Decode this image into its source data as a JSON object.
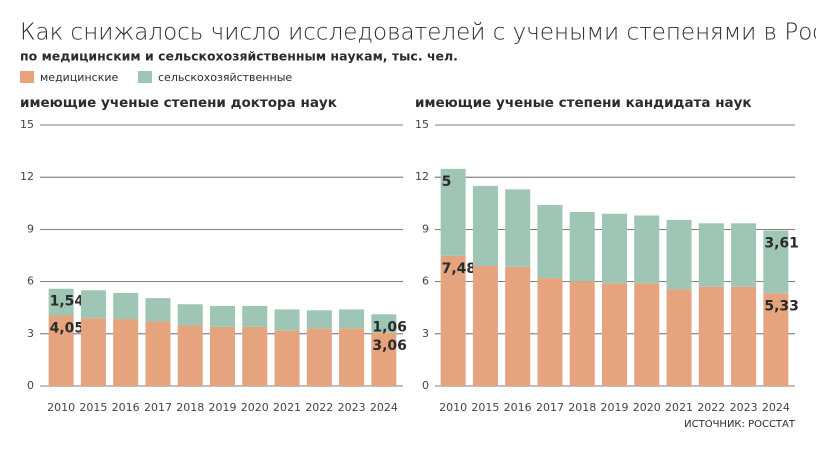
{
  "title": "Как снижалось число исследователей с учеными степенями в России",
  "subtitle": "по медицинским и сельскохозяйственным наукам, тыс. чел.",
  "source": "ИСТОЧНИК: РОССТАТ",
  "chart_data": [
    {
      "type": "stacked-bar",
      "title": "имеющие ученые степени доктора наук",
      "categories": [
        "2010",
        "2015",
        "2016",
        "2017",
        "2018",
        "2019",
        "2020",
        "2021",
        "2022",
        "2023",
        "2024"
      ],
      "series": [
        {
          "name": "медицинские",
          "color": "#e5a47e",
          "values": [
            4.05,
            3.9,
            3.85,
            3.7,
            3.5,
            3.4,
            3.4,
            3.2,
            3.3,
            3.3,
            3.06
          ],
          "value_labels": [
            "4,05",
            null,
            null,
            null,
            null,
            null,
            null,
            null,
            null,
            null,
            "3,06"
          ]
        },
        {
          "name": "сельскохозяйственные",
          "color": "#9fc5b5",
          "values": [
            1.54,
            1.6,
            1.5,
            1.35,
            1.2,
            1.2,
            1.2,
            1.2,
            1.05,
            1.1,
            1.06
          ],
          "value_labels": [
            "1,54",
            null,
            null,
            null,
            null,
            null,
            null,
            null,
            null,
            null,
            "1,06"
          ]
        }
      ],
      "ylim": [
        0,
        15
      ],
      "yticks": [
        0,
        3,
        6,
        9,
        12,
        15
      ],
      "grid": true
    },
    {
      "type": "stacked-bar",
      "title": "имеющие ученые степени кандидата наук",
      "categories": [
        "2010",
        "2015",
        "2016",
        "2017",
        "2018",
        "2019",
        "2020",
        "2021",
        "2022",
        "2023",
        "2024"
      ],
      "series": [
        {
          "name": "медицинские",
          "color": "#e5a47e",
          "values": [
            7.48,
            6.9,
            6.85,
            6.2,
            6.0,
            5.9,
            5.9,
            5.55,
            5.7,
            5.7,
            5.33
          ],
          "value_labels": [
            "7,48",
            null,
            null,
            null,
            null,
            null,
            null,
            null,
            null,
            null,
            "5,33"
          ]
        },
        {
          "name": "сельскохозяйственные",
          "color": "#9fc5b5",
          "values": [
            5,
            4.6,
            4.45,
            4.2,
            4.0,
            4.0,
            3.9,
            4.0,
            3.65,
            3.65,
            3.61
          ],
          "value_labels": [
            "5",
            null,
            null,
            null,
            null,
            null,
            null,
            null,
            null,
            null,
            "3,61"
          ]
        }
      ],
      "ylim": [
        0,
        15
      ],
      "yticks": [
        0,
        3,
        6,
        9,
        12,
        15
      ],
      "grid": true
    }
  ]
}
